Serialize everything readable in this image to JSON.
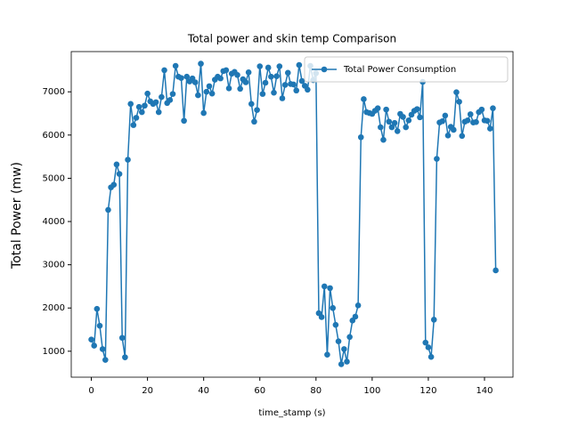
{
  "chart_data": {
    "type": "line",
    "title": "Total power and skin temp Comparison",
    "x_label": "time_stamp (s)",
    "y_label": "Total Power (mw)",
    "xlim": [
      -7.15,
      150.15
    ],
    "xticks": [
      0,
      20,
      40,
      60,
      80,
      100,
      120,
      140
    ],
    "ylim": [
      400,
      7930
    ],
    "yticks": [
      1000,
      2000,
      3000,
      4000,
      5000,
      6000,
      7000
    ],
    "legend": "upper right",
    "series": [
      {
        "name": "Total Power Consumption",
        "color": "#1f77b4",
        "values": [
          1270,
          1130,
          1980,
          1590,
          1050,
          800,
          4270,
          4790,
          4850,
          5320,
          5100,
          1310,
          860,
          5430,
          6720,
          6230,
          6400,
          6650,
          6530,
          6680,
          6960,
          6780,
          6720,
          6760,
          6530,
          6880,
          7500,
          6740,
          6810,
          6950,
          7600,
          7350,
          7320,
          6330,
          7350,
          7240,
          7310,
          7220,
          6920,
          7650,
          6510,
          7000,
          7130,
          6960,
          7280,
          7350,
          7310,
          7480,
          7500,
          7080,
          7420,
          7460,
          7390,
          7070,
          7290,
          7220,
          7450,
          6720,
          6310,
          6580,
          7590,
          6950,
          7210,
          7560,
          7350,
          6980,
          7360,
          7590,
          6850,
          7160,
          7440,
          7180,
          7170,
          7030,
          7620,
          7250,
          7140,
          7050,
          7600,
          7270,
          7430,
          1880,
          1790,
          2500,
          920,
          2460,
          2000,
          1610,
          1230,
          700,
          1050,
          760,
          1330,
          1710,
          1800,
          2060,
          5950,
          6830,
          6530,
          6510,
          6490,
          6560,
          6620,
          6180,
          5890,
          6590,
          6310,
          6180,
          6280,
          6090,
          6490,
          6420,
          6180,
          6340,
          6470,
          6560,
          6600,
          6410,
          7230,
          1200,
          1090,
          870,
          1730,
          5450,
          6290,
          6320,
          6450,
          5990,
          6190,
          6120,
          6990,
          6770,
          5980,
          6310,
          6340,
          6480,
          6290,
          6300,
          6530,
          6590,
          6340,
          6330,
          6150,
          6620,
          2870
        ]
      }
    ]
  }
}
